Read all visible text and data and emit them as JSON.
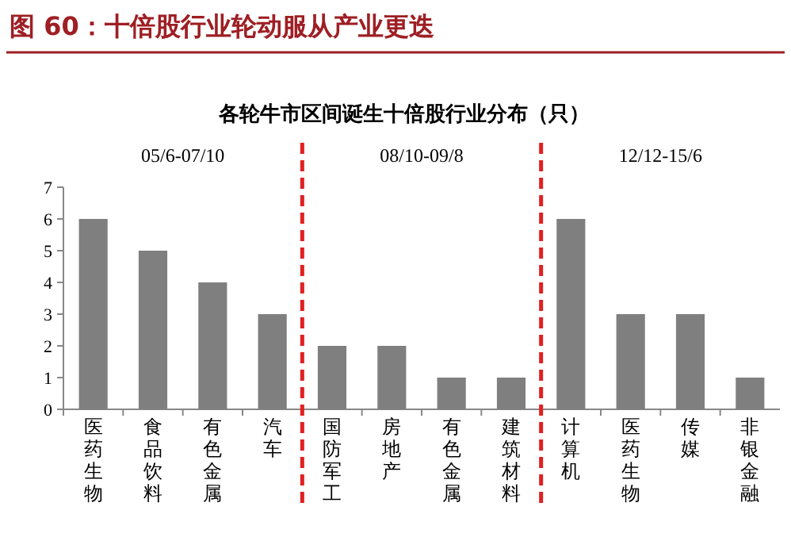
{
  "chart_data": {
    "type": "bar",
    "title": "图 60：十倍股行业轮动服从产业更迭",
    "subtitle": "各轮牛市区间诞生十倍股行业分布（只）",
    "categories": [
      "医药生物",
      "食品饮料",
      "有色金属",
      "汽车",
      "国防军工",
      "房地产",
      "有色金属",
      "建筑材料",
      "计算机",
      "医药生物",
      "传媒",
      "非银金融"
    ],
    "series": [
      {
        "color": "#7f7f7f",
        "values": [
          6,
          5,
          4,
          3,
          2,
          2,
          1,
          1,
          6,
          3,
          3,
          1
        ]
      }
    ],
    "ylim": [
      0,
      7
    ],
    "yticks": [
      0,
      1,
      2,
      3,
      4,
      5,
      6,
      7
    ],
    "grid": false,
    "annotations": [
      "05/6-07/10",
      "08/10-09/8",
      "12/12-15/6"
    ]
  }
}
